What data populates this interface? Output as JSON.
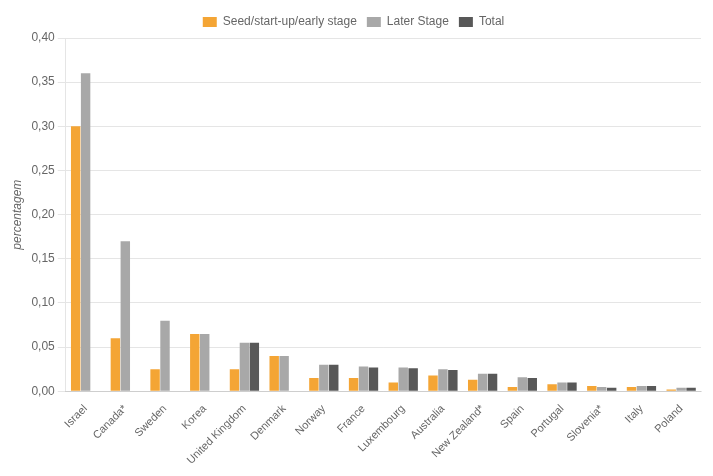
{
  "chart_data": {
    "type": "bar",
    "categories": [
      "Israel",
      "Canada*",
      "Sweden",
      "Korea",
      "United Kingdom",
      "Denmark",
      "Norway",
      "France",
      "Luxembourg",
      "Australia",
      "New Zealand*",
      "Spain",
      "Portugal",
      "Slovenia*",
      "Italy",
      "Poland"
    ],
    "series": [
      {
        "name": "Seed/start-up/early stage",
        "color": "#f4a535",
        "values": [
          0.3,
          0.06,
          0.025,
          0.065,
          0.025,
          0.04,
          0.015,
          0.015,
          0.01,
          0.018,
          0.013,
          0.005,
          0.008,
          0.006,
          0.005,
          0.002
        ]
      },
      {
        "name": "Later Stage",
        "color": "#a8a8a8",
        "values": [
          0.36,
          0.17,
          0.08,
          0.065,
          0.055,
          0.04,
          0.03,
          0.028,
          0.027,
          0.025,
          0.02,
          0.016,
          0.01,
          0.005,
          0.006,
          0.004
        ]
      },
      {
        "name": "Total",
        "color": "#585858",
        "values": [
          0.0,
          0.0,
          0.0,
          0.0,
          0.055,
          0.0,
          0.03,
          0.027,
          0.026,
          0.024,
          0.02,
          0.015,
          0.01,
          0.004,
          0.006,
          0.004
        ]
      }
    ],
    "ylabel": "percentagem",
    "ylim": [
      0,
      0.4
    ],
    "yticks": [
      {
        "value": 0.0,
        "label": "0,00"
      },
      {
        "value": 0.05,
        "label": "0,05"
      },
      {
        "value": 0.1,
        "label": "0,10"
      },
      {
        "value": 0.15,
        "label": "0,15"
      },
      {
        "value": 0.2,
        "label": "0,20"
      },
      {
        "value": 0.25,
        "label": "0,25"
      },
      {
        "value": 0.3,
        "label": "0,30"
      },
      {
        "value": 0.35,
        "label": "0,35"
      },
      {
        "value": 0.4,
        "label": "0,40"
      }
    ],
    "grid": true,
    "legend": "top"
  }
}
